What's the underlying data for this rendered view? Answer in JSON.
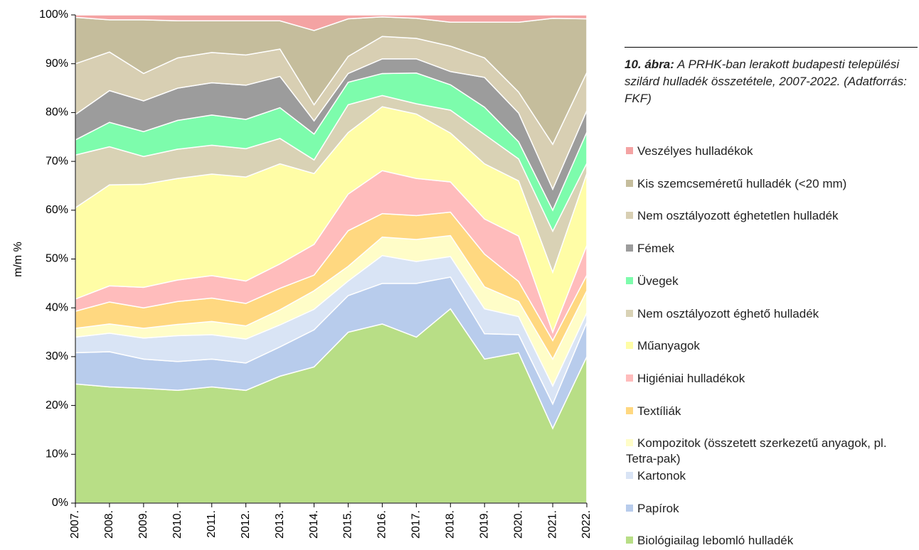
{
  "chart_data": {
    "type": "stacked_area",
    "y_label": "m/m %",
    "caption_label": "10. ábra:",
    "caption": "A PRHK-ban lerakott budapesti települési szilárd hulladék összetétele, 2007-2022. (Adatforrás: FKF)",
    "categories": [
      "2007.",
      "2008.",
      "2009.",
      "2010.",
      "2011.",
      "2012.",
      "2013.",
      "2014.",
      "2015.",
      "2016.",
      "2017.",
      "2018.",
      "2019.",
      "2020.",
      "2021.",
      "2022."
    ],
    "ylim": [
      0,
      100
    ],
    "yticks": [
      {
        "value": 0,
        "label": "0%"
      },
      {
        "value": 10,
        "label": "10%"
      },
      {
        "value": 20,
        "label": "20%"
      },
      {
        "value": 30,
        "label": "30%"
      },
      {
        "value": 40,
        "label": "40%"
      },
      {
        "value": 50,
        "label": "50%"
      },
      {
        "value": 60,
        "label": "60%"
      },
      {
        "value": 70,
        "label": "70%"
      },
      {
        "value": 80,
        "label": "80%"
      },
      {
        "value": 90,
        "label": "90%"
      },
      {
        "value": 100,
        "label": "100%"
      }
    ],
    "series": [
      {
        "name": "Biológiailag lebomló hulladék",
        "color": "#b8de86",
        "values": [
          24.4,
          23.8,
          23.5,
          23.1,
          23.8,
          23.1,
          26,
          27.9,
          35,
          36.7,
          34,
          39.8,
          29.5,
          30.8,
          15.3,
          30
        ]
      },
      {
        "name": "Papírok",
        "color": "#b8ccec",
        "values": [
          6.4,
          7.2,
          6,
          5.9,
          5.7,
          5.6,
          6,
          7.6,
          7.5,
          8.3,
          11,
          6.5,
          5.2,
          3.7,
          5,
          7
        ]
      },
      {
        "name": "Kartonok",
        "color": "#d9e4f5",
        "values": [
          3.2,
          3.8,
          4.3,
          5.3,
          5,
          4.9,
          4.5,
          4.2,
          3,
          5.7,
          4.5,
          4.2,
          5.1,
          3.7,
          3.7,
          2
        ]
      },
      {
        "name": "Kompozitok (összetett szerkezetű anyagok, pl. Tetra-pak)",
        "color": "#fffdc8",
        "values": [
          1.8,
          1.9,
          2,
          2.3,
          2.7,
          2.7,
          3.1,
          3.8,
          3,
          3.8,
          4.5,
          4.3,
          4.5,
          3.1,
          5.5,
          4.5
        ]
      },
      {
        "name": "Textíliák",
        "color": "#ffd880",
        "values": [
          3.5,
          4.5,
          4.2,
          4.7,
          4.8,
          4.6,
          4.4,
          3.2,
          7.3,
          4.8,
          4.9,
          4.8,
          6.7,
          4.1,
          3.8,
          3.2
        ]
      },
      {
        "name": "Higiéniai hulladékok",
        "color": "#ffbcbc",
        "values": [
          2.5,
          3.3,
          4.2,
          4.4,
          4.6,
          4.6,
          5,
          6.3,
          7.5,
          8.8,
          7.6,
          6.2,
          7.2,
          9.3,
          1.7,
          6.1
        ]
      },
      {
        "name": "Műanyagok",
        "color": "#fffda6",
        "values": [
          18.7,
          20.7,
          21.1,
          20.8,
          20.8,
          21.3,
          20.5,
          14.5,
          12.6,
          13.1,
          13.2,
          10,
          11.3,
          11.3,
          12.3,
          14.7
        ]
      },
      {
        "name": "Nem osztályozott éghető hulladék",
        "color": "#d9d2b5",
        "values": [
          10.8,
          7.8,
          5.7,
          6,
          5.9,
          5.8,
          5.2,
          2.8,
          5.7,
          2.3,
          2.1,
          4.7,
          6,
          4.5,
          8.4,
          2.1
        ]
      },
      {
        "name": "Üvegek",
        "color": "#7dfcac",
        "values": [
          3.1,
          5,
          5.1,
          5.9,
          6.2,
          6,
          6.3,
          5.3,
          4.6,
          4.5,
          6.3,
          5.2,
          5.6,
          3.5,
          4.3,
          6.4
        ]
      },
      {
        "name": "Fémek",
        "color": "#9c9c9c",
        "values": [
          5.2,
          6.5,
          6.3,
          6.6,
          6.6,
          7,
          6.4,
          2.7,
          1.8,
          3,
          2.9,
          2.7,
          6.1,
          5.9,
          4.3,
          4.4
        ]
      },
      {
        "name": "Nem osztályozott éghetetlen hulladék",
        "color": "#d8cfb3",
        "values": [
          10.4,
          7.9,
          5.6,
          6.2,
          6.2,
          6.2,
          5.6,
          3.3,
          3.5,
          4.6,
          4.2,
          5.2,
          4,
          4.3,
          9.2,
          7.8
        ]
      },
      {
        "name": "Kis szemcseméretű hulladék (<20 mm)",
        "color": "#c5bd9c",
        "values": [
          9.5,
          6.6,
          11,
          7.6,
          6.5,
          7,
          5.8,
          15.2,
          7.7,
          4,
          4.1,
          4.9,
          7.3,
          14.3,
          25.8,
          11
        ]
      },
      {
        "name": "Veszélyes hulladékok",
        "color": "#f4a3a3",
        "values": [
          0.5,
          1,
          1,
          1.2,
          1.2,
          1.2,
          1.2,
          3.2,
          0.8,
          0.4,
          0.7,
          1.5,
          1.5,
          1.5,
          0.7,
          0.8
        ]
      }
    ]
  }
}
